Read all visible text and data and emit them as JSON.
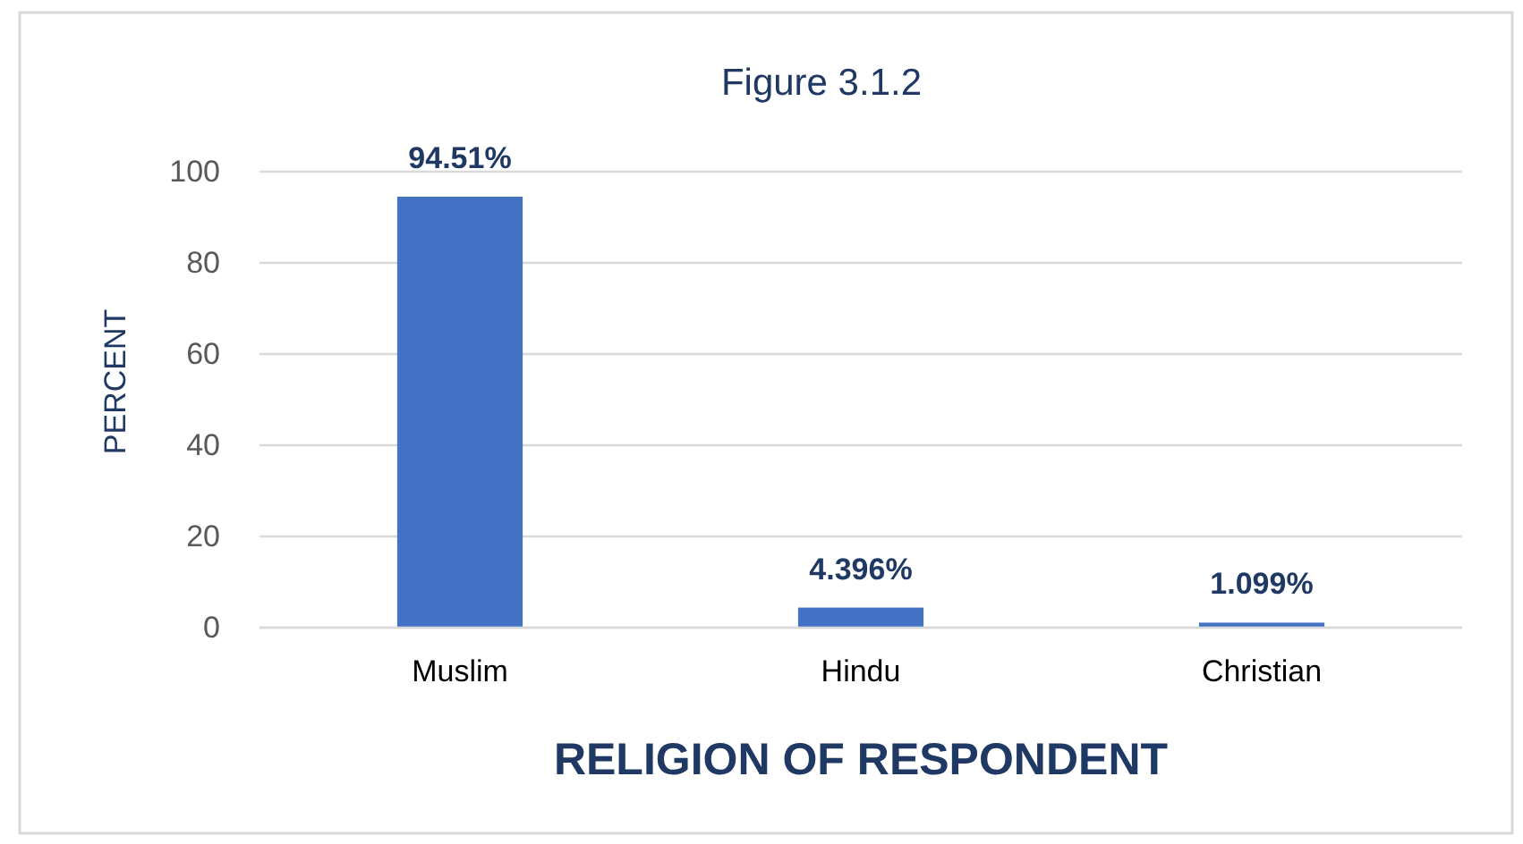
{
  "chart_data": {
    "type": "bar",
    "title": "Figure 3.1.2",
    "xlabel": "RELIGION OF RESPONDENT",
    "ylabel": "PERCENT",
    "categories": [
      "Muslim",
      "Hindu",
      "Christian"
    ],
    "values": [
      94.51,
      4.396,
      1.099
    ],
    "color": "#4472c4",
    "value_labels": [
      "94.51%",
      "4.396%",
      "1.099%"
    ],
    "ylim": [
      0,
      100
    ],
    "yticks": [
      0,
      20,
      40,
      60,
      80,
      100
    ],
    "grid": "y"
  }
}
